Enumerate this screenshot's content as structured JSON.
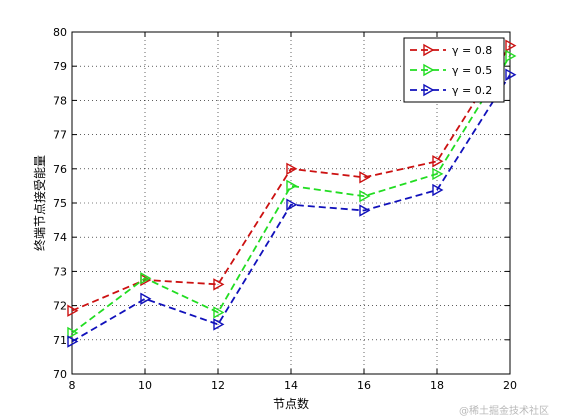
{
  "chart_data": {
    "type": "line",
    "xlabel": "节点数",
    "ylabel": "终端节点接受能量",
    "x": [
      8,
      10,
      12,
      14,
      16,
      18,
      20
    ],
    "xlim": [
      8,
      20
    ],
    "ylim": [
      70,
      80
    ],
    "yticks": [
      70,
      71,
      72,
      73,
      74,
      75,
      76,
      77,
      78,
      79,
      80
    ],
    "xticks": [
      8,
      10,
      12,
      14,
      16,
      18,
      20
    ],
    "grid": true,
    "legend_position": "top-right",
    "series": [
      {
        "name": "γ = 0.8",
        "color": "#cc1111",
        "values": [
          71.85,
          72.75,
          72.62,
          76.0,
          75.75,
          76.22,
          79.6
        ]
      },
      {
        "name": "γ = 0.5",
        "color": "#22dd22",
        "values": [
          71.2,
          72.8,
          71.8,
          75.5,
          75.2,
          75.85,
          79.3
        ]
      },
      {
        "name": "γ = 0.2",
        "color": "#1111bb",
        "values": [
          70.95,
          72.2,
          71.45,
          74.95,
          74.78,
          75.38,
          78.75
        ]
      }
    ]
  },
  "watermark": "@稀土掘金技术社区"
}
